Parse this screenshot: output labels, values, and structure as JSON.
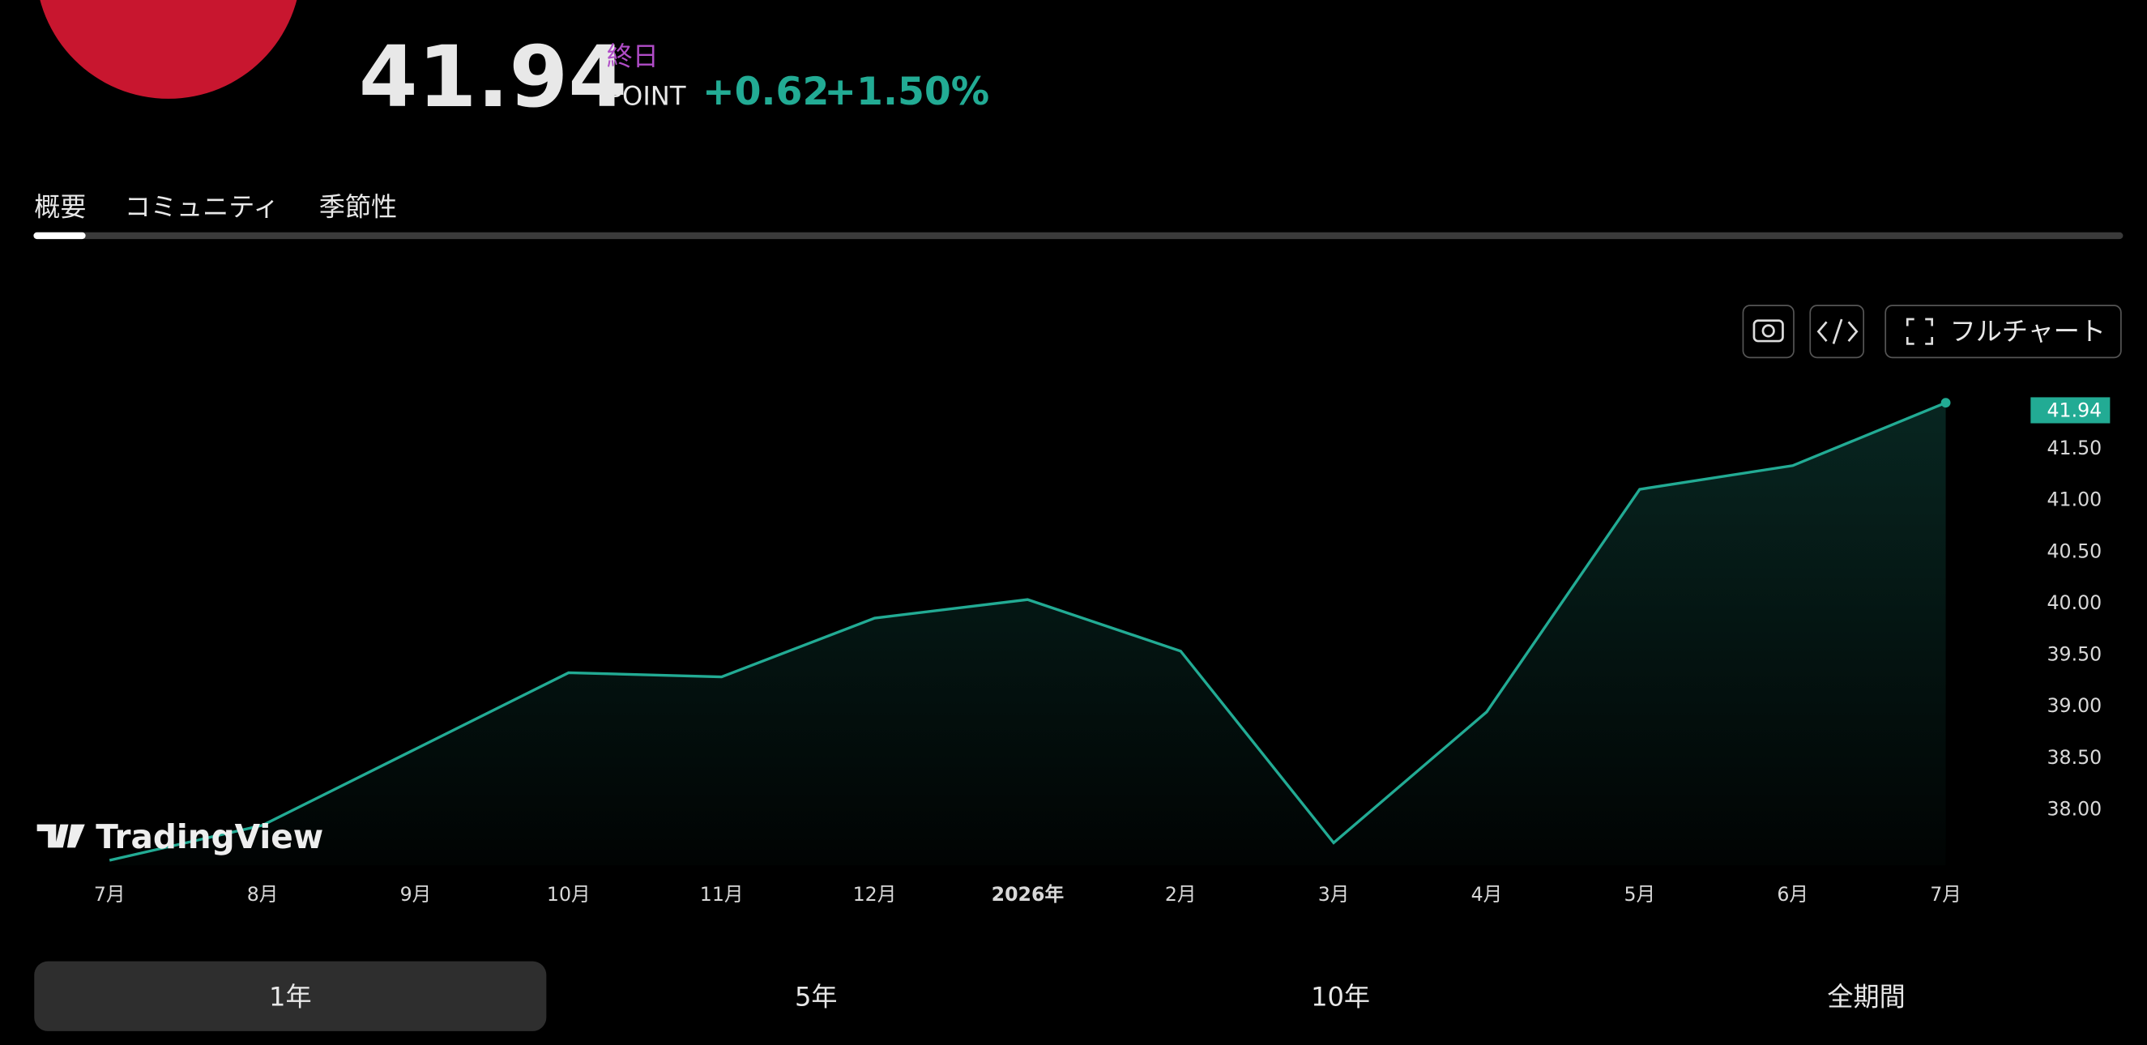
{
  "header": {
    "price": "41.94",
    "session": "終日",
    "unit": "POINT",
    "change": "+0.62",
    "change_pct": "+1.50%"
  },
  "tabs": [
    "概要",
    "コミュニティ",
    "季節性"
  ],
  "toolbar": {
    "full_chart": "フルチャート"
  },
  "watermark": "TradingView",
  "ranges": [
    "1年",
    "5年",
    "10年",
    "全期間"
  ],
  "chart_data": {
    "type": "area",
    "color": "#22ab94",
    "categories": [
      "7月",
      "8月",
      "9月",
      "10月",
      "11月",
      "12月",
      "2026年",
      "2月",
      "3月",
      "4月",
      "5月",
      "6月",
      "7月"
    ],
    "values": [
      37.5,
      37.84,
      38.58,
      39.32,
      39.28,
      39.85,
      40.03,
      39.53,
      37.67,
      38.94,
      41.1,
      41.33,
      41.94
    ],
    "ylim": [
      37.45,
      42.06
    ],
    "yticks": [
      {
        "value": 38,
        "label": "38.00"
      },
      {
        "value": 38.5,
        "label": "38.50"
      },
      {
        "value": 39,
        "label": "39.00"
      },
      {
        "value": 39.5,
        "label": "39.50"
      },
      {
        "value": 40,
        "label": "40.00"
      },
      {
        "value": 40.5,
        "label": "40.50"
      },
      {
        "value": 41,
        "label": "41.00"
      },
      {
        "value": 41.5,
        "label": "41.50"
      }
    ]
  }
}
